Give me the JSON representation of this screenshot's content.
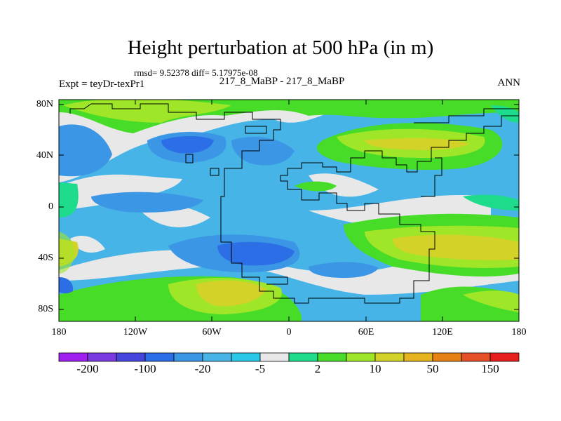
{
  "title": "Height perturbation at 500 hPa (in m)",
  "stats": "rmsd= 9.52378 diff= 5.17975e-08",
  "experiment": "Expt = teyDr-texPr1",
  "comparison": "217_8_MaBP - 217_8_MaBP",
  "season": "ANN",
  "lat_labels": [
    "80N",
    "40N",
    "0",
    "40S",
    "80S"
  ],
  "lon_labels": [
    "180",
    "120W",
    "60W",
    "0",
    "60E",
    "120E",
    "180"
  ],
  "colorbar": {
    "labels": [
      "-200",
      "-100",
      "-20",
      "-5",
      "2",
      "10",
      "50",
      "150"
    ],
    "colors": [
      "#a020f0",
      "#7a3ce0",
      "#4646dc",
      "#2b6ee6",
      "#3c96e6",
      "#46b4e6",
      "#28c8e6",
      "#e8e8e8",
      "#1edc8c",
      "#46dc28",
      "#a0e628",
      "#d2d228",
      "#e6b41e",
      "#e68214",
      "#e65028",
      "#e61e1e"
    ]
  }
}
